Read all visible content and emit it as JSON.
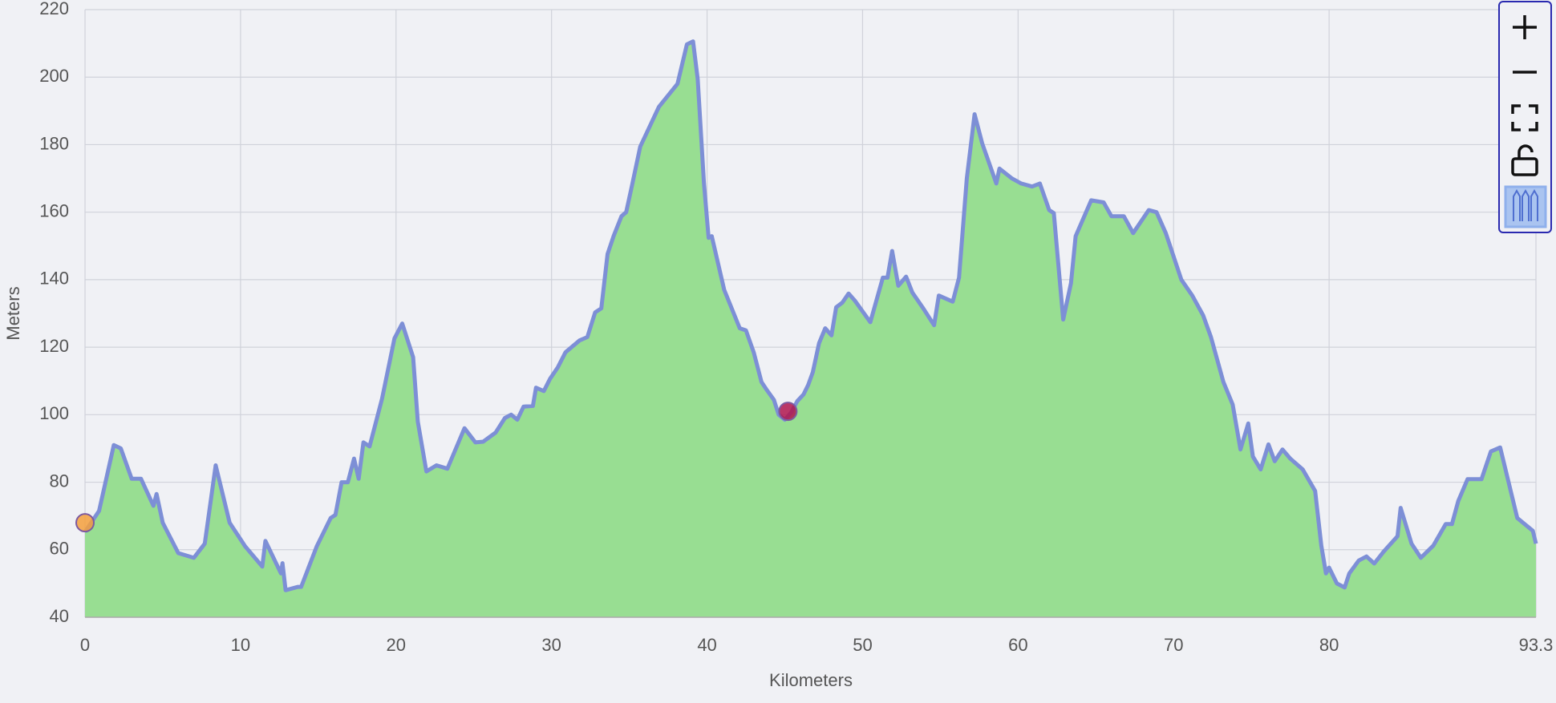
{
  "chart_data": {
    "type": "area",
    "x_label": "Kilometers",
    "y_label": "Meters",
    "x": [
      0,
      0.9,
      1.85,
      2.3,
      3.0,
      3.6,
      4.4,
      4.6,
      5.0,
      6.0,
      7.0,
      7.7,
      8.4,
      9.3,
      10.3,
      11.4,
      11.6,
      12.6,
      12.7,
      12.9,
      13.7,
      13.9,
      14.9,
      15.8,
      16.1,
      16.5,
      16.9,
      17.3,
      17.6,
      17.9,
      18.3,
      19.1,
      19.9,
      20.4,
      21.1,
      21.4,
      21.95,
      22.6,
      23.3,
      24.4,
      25.1,
      25.6,
      26.4,
      27.0,
      27.4,
      27.8,
      28.2,
      28.8,
      29.0,
      29.5,
      29.9,
      30.4,
      30.9,
      31.8,
      32.3,
      32.8,
      33.2,
      33.6,
      34.0,
      34.5,
      34.8,
      35.2,
      35.7,
      36.9,
      38.1,
      38.7,
      39.1,
      39.4,
      39.8,
      40.1,
      40.3,
      41.1,
      42.1,
      42.5,
      43.0,
      43.5,
      43.8,
      44.3,
      44.6,
      45.0,
      45.4,
      45.8,
      46.2,
      46.5,
      46.8,
      47.2,
      47.6,
      48.0,
      48.3,
      48.7,
      49.1,
      49.5,
      50.5,
      51.3,
      51.6,
      51.9,
      52.3,
      52.8,
      53.2,
      53.9,
      54.6,
      54.9,
      55.8,
      56.2,
      56.7,
      57.2,
      57.7,
      58.6,
      58.8,
      59.6,
      60.2,
      60.9,
      61.4,
      62.0,
      62.3,
      62.9,
      63.4,
      63.7,
      64.7,
      65.5,
      66.0,
      66.8,
      67.4,
      68.4,
      68.9,
      69.5,
      70.5,
      71.2,
      71.9,
      72.4,
      73.2,
      73.8,
      74.3,
      74.8,
      75.1,
      75.6,
      76.1,
      76.5,
      77.0,
      77.5,
      78.3,
      79.1,
      79.5,
      79.8,
      80.0,
      80.5,
      81.0,
      81.3,
      81.9,
      82.4,
      82.9,
      83.5,
      84.4,
      84.6,
      85.3,
      85.9,
      86.7,
      87.5,
      87.9,
      88.3,
      88.9,
      89.8,
      90.4,
      91.0,
      92.1,
      93.1,
      93.3
    ],
    "series": [
      {
        "color": "#7d8fd6",
        "fill": "#98de92",
        "values": [
          65.3,
          71.5,
          91,
          90,
          81,
          81,
          73,
          76.5,
          68,
          59,
          57.6,
          61.8,
          85,
          68,
          61,
          55,
          62.6,
          53,
          56,
          48,
          49,
          49,
          61,
          69.4,
          70.3,
          80,
          80,
          87,
          81,
          91.8,
          90.6,
          104.7,
          122.6,
          127,
          117,
          98,
          83.2,
          85,
          84,
          96,
          91.8,
          92,
          94.7,
          99,
          100,
          98.5,
          102.4,
          102.6,
          108,
          107,
          110.6,
          114,
          118.5,
          122,
          123,
          130.3,
          131.5,
          147.6,
          153,
          158.8,
          160,
          168.5,
          179.4,
          191.2,
          198,
          209.7,
          210.6,
          199.4,
          168.5,
          152.4,
          152.9,
          137,
          125.6,
          125,
          118.5,
          109.7,
          107.6,
          104.4,
          100,
          98.5,
          100.6,
          104,
          106,
          108.8,
          112.6,
          121.2,
          125.6,
          123.5,
          131.8,
          133.2,
          135.9,
          133.8,
          127.4,
          140.6,
          140.6,
          148.5,
          138.2,
          140.9,
          136.2,
          131.5,
          126.5,
          135.3,
          133.5,
          140.6,
          170,
          189,
          180.3,
          168.5,
          172.9,
          170,
          168.5,
          167.6,
          168.5,
          160.6,
          159.7,
          128.2,
          139,
          152.9,
          163.5,
          162.9,
          158.8,
          158.8,
          153.8,
          160.6,
          160,
          153.8,
          140,
          135.3,
          129.4,
          123,
          109.7,
          103,
          89.7,
          97.4,
          87.6,
          83.8,
          91.2,
          86.2,
          89.7,
          87,
          83.8,
          77.4,
          61.2,
          53,
          54.7,
          50,
          48.8,
          53,
          56.8,
          58,
          55.9,
          59.4,
          64,
          72.4,
          61.8,
          57.6,
          61.2,
          67.6,
          67.6,
          74.4,
          80.9,
          80.9,
          89.1,
          90.3,
          69.4,
          65.6,
          61.8
        ]
      }
    ],
    "markers": [
      {
        "x": 0,
        "y": 68,
        "color": "#f4a03c"
      },
      {
        "x": 45.2,
        "y": 101,
        "color": "#b0164e"
      }
    ],
    "xlim": [
      0,
      93.3
    ],
    "xticks": [
      0,
      10,
      20,
      30,
      40,
      50,
      60,
      70,
      80,
      93.3
    ],
    "ylim": [
      40,
      220
    ],
    "yticks": [
      40,
      60,
      80,
      100,
      120,
      140,
      160,
      180,
      200,
      220
    ],
    "grid": true
  }
}
